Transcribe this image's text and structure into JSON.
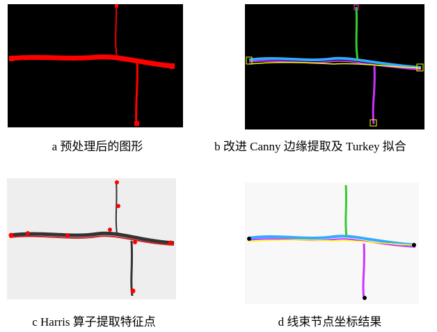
{
  "figure": {
    "panels": [
      {
        "caption": "a  预处理后的图形"
      },
      {
        "caption": "b  改进 Canny 边缘提取及 Turkey 拟合"
      },
      {
        "caption": "c Harris 算子提取特征点"
      },
      {
        "caption": "d  线束节点坐标结果"
      }
    ]
  }
}
